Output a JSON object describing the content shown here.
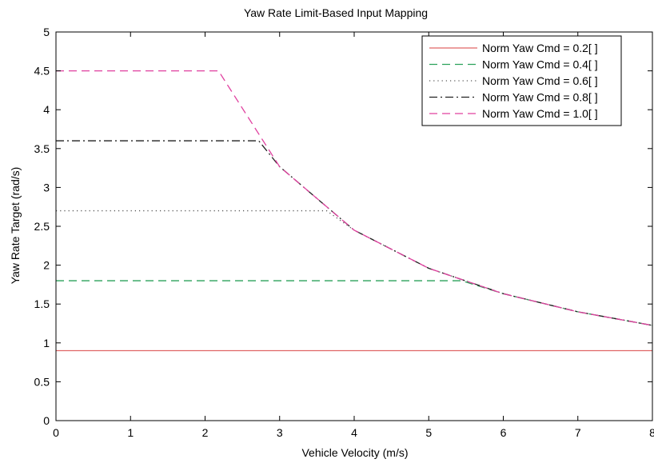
{
  "chart_data": {
    "type": "line",
    "title": "Yaw Rate Limit-Based Input Mapping",
    "xlabel": "Vehicle Velocity (m/s)",
    "ylabel": "Yaw Rate Target (rad/s)",
    "xlim": [
      0,
      8
    ],
    "ylim": [
      0,
      5
    ],
    "x_ticks": [
      "0",
      "1",
      "2",
      "3",
      "4",
      "5",
      "6",
      "7",
      "8"
    ],
    "y_ticks": [
      "0",
      "0.5",
      "1",
      "1.5",
      "2",
      "2.5",
      "3",
      "3.5",
      "4",
      "4.5",
      "5"
    ],
    "grid": false,
    "legend_position": "top-right",
    "curve_constant": 9.8,
    "series": [
      {
        "name": "Norm Yaw Cmd = 0.2[ ]",
        "color": "#e06666",
        "dash": "solid",
        "cap": 0.9,
        "points": [
          [
            0,
            0.9
          ],
          [
            8,
            0.9
          ]
        ]
      },
      {
        "name": "Norm Yaw Cmd = 0.4[ ]",
        "color": "#2aa15a",
        "dash": "dashed",
        "cap": 1.8,
        "points": [
          [
            0,
            1.8
          ],
          [
            5.44,
            1.8
          ],
          [
            6,
            1.633
          ],
          [
            7,
            1.4
          ],
          [
            8,
            1.225
          ]
        ]
      },
      {
        "name": "Norm Yaw Cmd = 0.6[ ]",
        "color": "#555555",
        "dash": "dotted",
        "cap": 2.7,
        "points": [
          [
            0,
            2.7
          ],
          [
            3.63,
            2.7
          ],
          [
            4,
            2.45
          ],
          [
            5,
            1.96
          ],
          [
            6,
            1.633
          ],
          [
            7,
            1.4
          ],
          [
            8,
            1.225
          ]
        ]
      },
      {
        "name": "Norm Yaw Cmd = 0.8[ ]",
        "color": "#222222",
        "dash": "dashdot",
        "cap": 3.6,
        "points": [
          [
            0,
            3.6
          ],
          [
            2.72,
            3.6
          ],
          [
            3,
            3.267
          ],
          [
            4,
            2.45
          ],
          [
            5,
            1.96
          ],
          [
            6,
            1.633
          ],
          [
            7,
            1.4
          ],
          [
            8,
            1.225
          ]
        ]
      },
      {
        "name": "Norm Yaw Cmd = 1.0[ ]",
        "color": "#e0409f",
        "dash": "dashed",
        "cap": 4.5,
        "points": [
          [
            0,
            4.5
          ],
          [
            2.18,
            4.5
          ],
          [
            3,
            3.267
          ],
          [
            4,
            2.45
          ],
          [
            5,
            1.96
          ],
          [
            6,
            1.633
          ],
          [
            7,
            1.4
          ],
          [
            8,
            1.225
          ]
        ]
      }
    ]
  }
}
